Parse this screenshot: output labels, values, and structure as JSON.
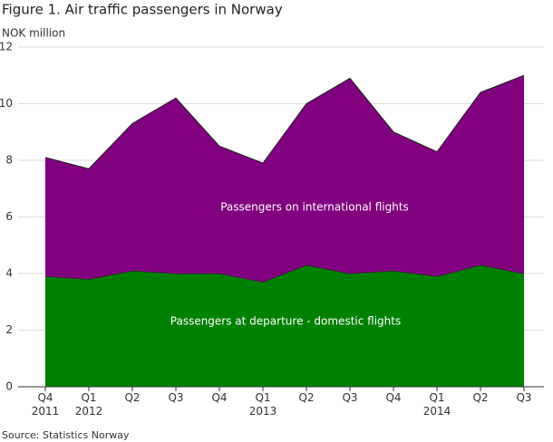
{
  "chart_data": {
    "type": "stacked_area",
    "title": "Figure 1. Air traffic passengers in Norway",
    "y_label": "NOK million",
    "source": "Source: Statistics Norway",
    "categories": [
      "Q4 2011",
      "Q1 2012",
      "Q2",
      "Q3",
      "Q4",
      "Q1 2013",
      "Q2",
      "Q3",
      "Q4",
      "Q1 2014",
      "Q2",
      "Q3"
    ],
    "series": [
      {
        "name": "Passengers at departure - domestic flights",
        "color": "#008000",
        "values": [
          3.9,
          3.8,
          4.1,
          4.0,
          4.0,
          3.7,
          4.3,
          4.0,
          4.1,
          3.9,
          4.3,
          4.0
        ]
      },
      {
        "name": "Passengers on international flights",
        "color": "#800080",
        "values": [
          4.2,
          3.9,
          5.2,
          6.2,
          4.5,
          4.2,
          5.7,
          6.9,
          4.9,
          4.4,
          6.1,
          7.0
        ]
      }
    ],
    "ylim": [
      0,
      12
    ],
    "yticks": [
      0,
      2,
      4,
      6,
      8,
      10,
      12
    ],
    "grid": true
  }
}
